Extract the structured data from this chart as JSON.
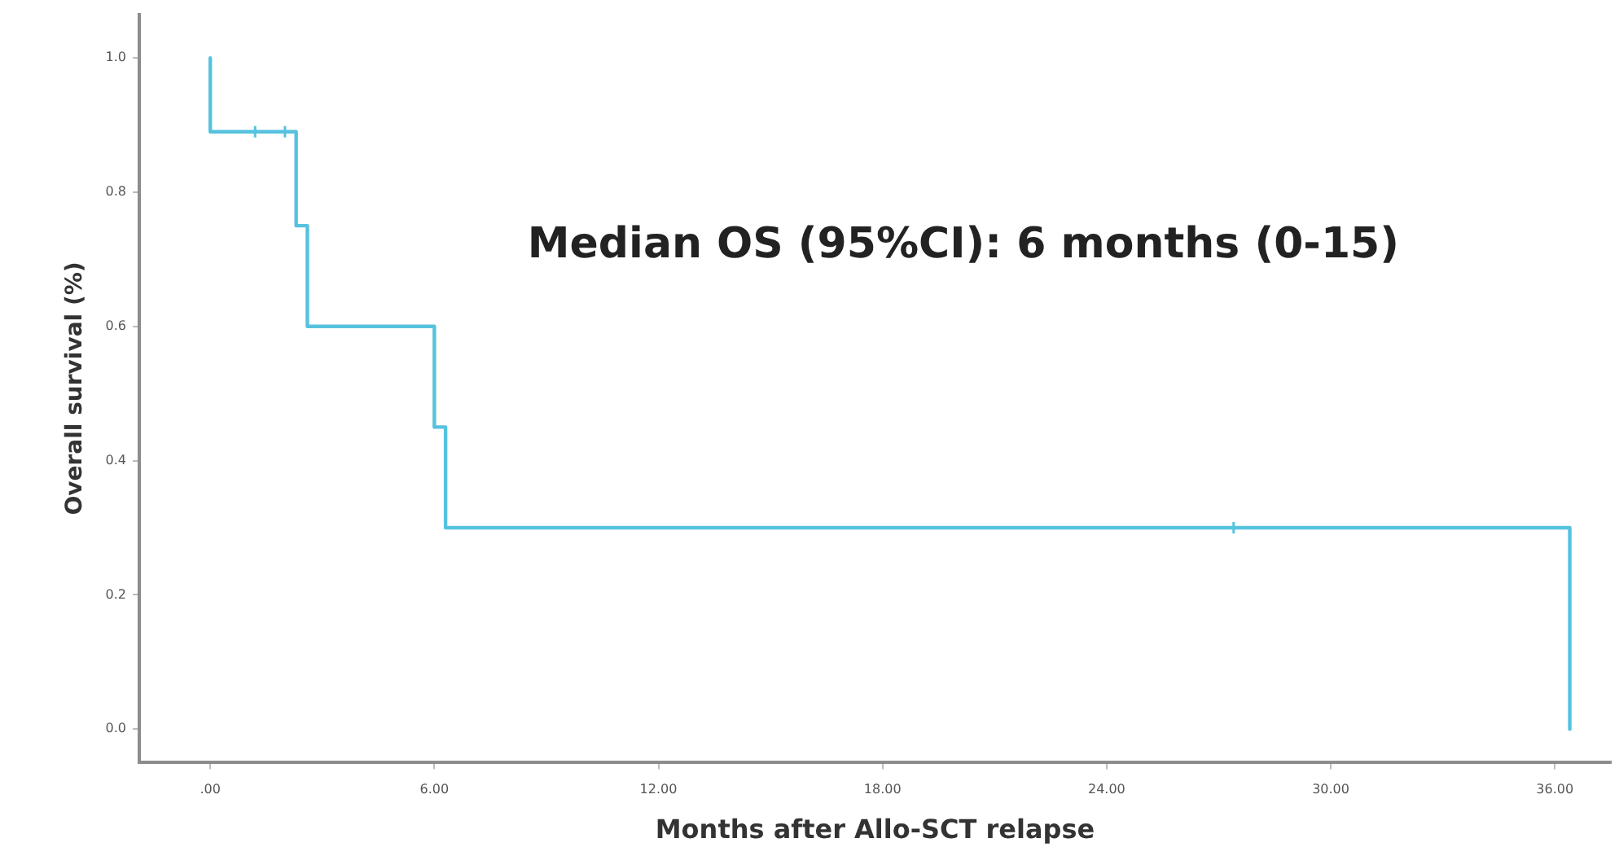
{
  "chart_data": {
    "type": "step",
    "xlabel": "Months after Allo-SCT relapse",
    "ylabel": "Overall survival (%)",
    "annotations": [
      "Median OS (95%CI): 6 months (0-15)"
    ],
    "series": [
      {
        "color": "#56c2de",
        "x": [
          0,
          0,
          2.3,
          2.6,
          6.0,
          6.3,
          36.4
        ],
        "values": [
          1.0,
          0.89,
          0.75,
          0.6,
          0.45,
          0.3,
          0.0
        ],
        "marker": "none",
        "line_style": "solid"
      },
      {
        "type": "scatter",
        "color": "#56c2de",
        "x": [
          1.2,
          2.0,
          27.4
        ],
        "values": [
          0.89,
          0.89,
          0.3
        ],
        "marker": "cross"
      }
    ],
    "xlim": [
      -1.9,
      37.5
    ],
    "ylim": [
      -0.05,
      1.065
    ],
    "xticks": [
      {
        "value": 0,
        "label": ".00"
      },
      {
        "value": 6,
        "label": "6.00"
      },
      {
        "value": 12,
        "label": "12.00"
      },
      {
        "value": 18,
        "label": "18.00"
      },
      {
        "value": 24,
        "label": "24.00"
      },
      {
        "value": 30,
        "label": "30.00"
      },
      {
        "value": 36,
        "label": "36.00"
      }
    ],
    "yticks": [
      {
        "value": 0,
        "label": "0.0"
      },
      {
        "value": 0.2,
        "label": "0.2"
      },
      {
        "value": 0.4,
        "label": "0.4"
      },
      {
        "value": 0.6,
        "label": "0.6"
      },
      {
        "value": 0.8,
        "label": "0.8"
      },
      {
        "value": 1,
        "label": "1.0"
      }
    ],
    "grid": false,
    "legend": false
  }
}
